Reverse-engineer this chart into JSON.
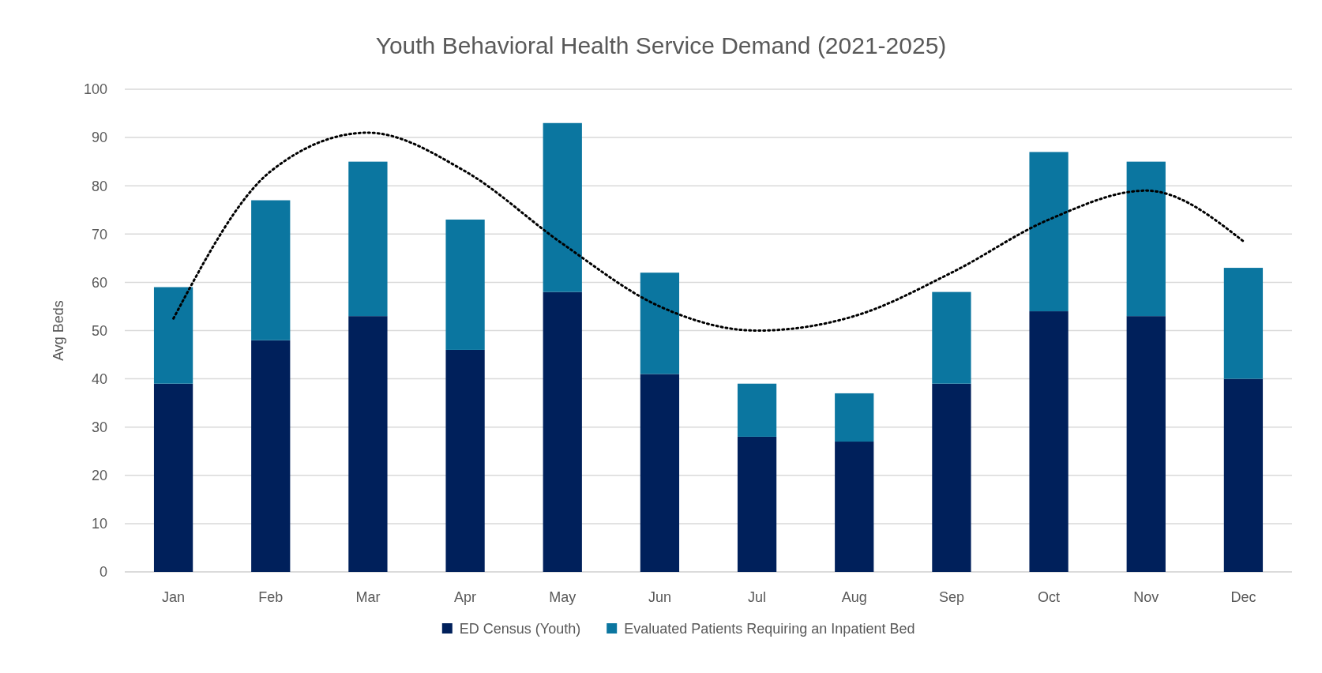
{
  "chart_data": {
    "type": "bar",
    "title": "Youth Behavioral Health Service Demand (2021-2025)",
    "ylabel": "Avg Beds",
    "categories": [
      "Jan",
      "Feb",
      "Mar",
      "Apr",
      "May",
      "Jun",
      "Jul",
      "Aug",
      "Sep",
      "Oct",
      "Nov",
      "Dec"
    ],
    "stacked": true,
    "series": [
      {
        "name": "ED Census (Youth)",
        "color": "#00205b",
        "values": [
          39,
          48,
          53,
          46,
          58,
          41,
          28,
          27,
          39,
          54,
          53,
          40
        ]
      },
      {
        "name": "Evaluated Patients Requiring an Inpatient Bed",
        "color": "#0b76a0",
        "values": [
          20,
          29,
          32,
          27,
          35,
          21,
          11,
          10,
          19,
          33,
          32,
          23
        ]
      },
      {
        "type": "line",
        "color": "#000000",
        "line_style": "dotted",
        "values": [
          52.5,
          83,
          91,
          83,
          68,
          55,
          50,
          53,
          62,
          73,
          79,
          68.5
        ]
      }
    ],
    "ylim": [
      0,
      100
    ],
    "yticks": [
      0,
      10,
      20,
      30,
      40,
      50,
      60,
      70,
      80,
      90,
      100
    ],
    "grid": "y",
    "legend": "bottom"
  }
}
